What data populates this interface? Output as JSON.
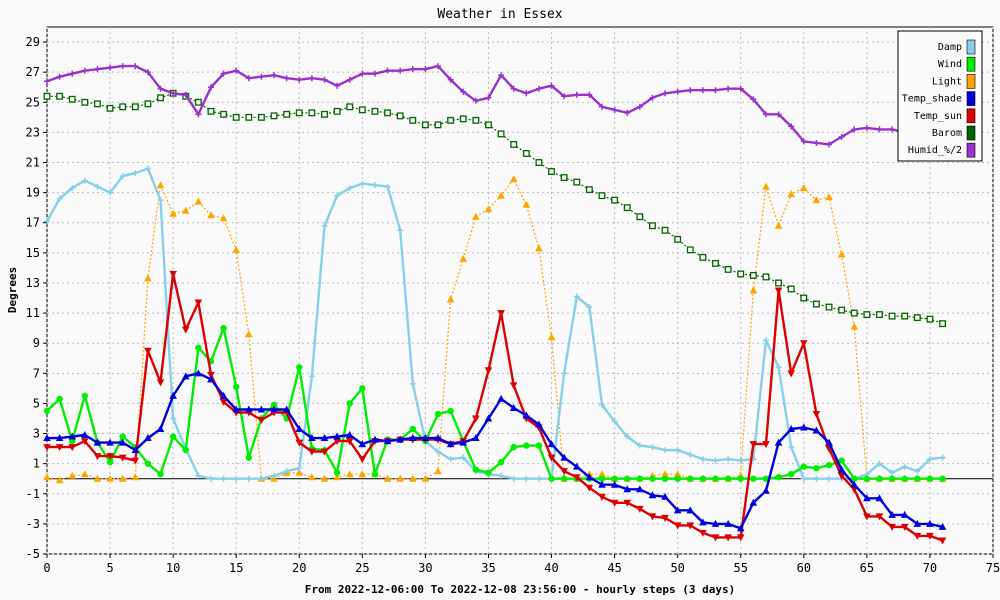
{
  "chart_data": {
    "type": "line",
    "title": "Weather in Essex",
    "xlabel": "From 2022-12-06:00 To 2022-12-08 23:56:00 - hourly steps (3 days)",
    "ylabel": "Degrees",
    "xlim": [
      0,
      75
    ],
    "ylim": [
      -5,
      30
    ],
    "xticks": [
      0,
      5,
      10,
      15,
      20,
      25,
      30,
      35,
      40,
      45,
      50,
      55,
      60,
      65,
      70,
      75
    ],
    "yticks": [
      -5,
      -3,
      -1,
      1,
      3,
      5,
      7,
      9,
      11,
      13,
      15,
      17,
      19,
      21,
      23,
      25,
      27,
      29
    ],
    "grid": true,
    "legend_position": "top-right",
    "x": [
      0,
      1,
      2,
      3,
      4,
      5,
      6,
      7,
      8,
      9,
      10,
      11,
      12,
      13,
      14,
      15,
      16,
      17,
      18,
      19,
      20,
      21,
      22,
      23,
      24,
      25,
      26,
      27,
      28,
      29,
      30,
      31,
      32,
      33,
      34,
      35,
      36,
      37,
      38,
      39,
      40,
      41,
      42,
      43,
      44,
      45,
      46,
      47,
      48,
      49,
      50,
      51,
      52,
      53,
      54,
      55,
      56,
      57,
      58,
      59,
      60,
      61,
      62,
      63,
      64,
      65,
      66,
      67,
      68,
      69,
      70,
      71
    ],
    "series": [
      {
        "name": "Damp",
        "color": "#87ceeb",
        "values": [
          17.1,
          18.6,
          19.3,
          19.8,
          19.4,
          19.0,
          20.1,
          20.3,
          20.6,
          18.5,
          4.0,
          2.0,
          0.2,
          0.0,
          0.0,
          0.0,
          0.0,
          0.0,
          0.2,
          0.5,
          0.7,
          6.8,
          16.8,
          18.8,
          19.3,
          19.6,
          19.5,
          19.4,
          16.5,
          6.3,
          2.5,
          1.8,
          1.3,
          1.4,
          0.5,
          0.3,
          0.2,
          0.0,
          0.0,
          0.0,
          0.0,
          7.0,
          12.1,
          11.4,
          4.9,
          3.8,
          2.8,
          2.2,
          2.1,
          1.9,
          1.9,
          1.6,
          1.3,
          1.2,
          1.3,
          1.2,
          1.3,
          9.2,
          7.4,
          2.1,
          0.0,
          0.0,
          0.0,
          0.0,
          0.0,
          0.3,
          1.0,
          0.4,
          0.8,
          0.5,
          1.3,
          1.4
        ]
      },
      {
        "name": "Wind",
        "color": "#00ee00",
        "values": [
          4.5,
          5.3,
          2.5,
          5.5,
          2.4,
          1.1,
          2.8,
          2.1,
          1.0,
          0.3,
          2.8,
          1.9,
          8.7,
          7.8,
          10.0,
          6.1,
          1.4,
          4.0,
          4.9,
          4.0,
          7.4,
          2.0,
          1.9,
          0.4,
          5.0,
          6.0,
          0.3,
          2.6,
          2.6,
          3.3,
          2.5,
          4.3,
          4.5,
          2.5,
          0.6,
          0.4,
          1.1,
          2.1,
          2.2,
          2.2,
          0.0,
          0.0,
          0.0,
          0.0,
          0.0,
          0.0,
          0.0,
          0.0,
          0.0,
          0.0,
          0.0,
          0.0,
          0.0,
          0.0,
          0.0,
          0.0,
          0.0,
          0.0,
          0.1,
          0.3,
          0.8,
          0.7,
          0.9,
          1.2,
          0.0,
          0.0,
          0.0,
          0.0,
          0.0,
          0.0,
          0.0,
          0.0
        ]
      },
      {
        "name": "Light",
        "color": "#ffa500",
        "values": [
          0.1,
          -0.1,
          0.2,
          0.3,
          0.0,
          0.0,
          0.0,
          0.1,
          13.3,
          19.5,
          17.6,
          17.8,
          18.4,
          17.5,
          17.3,
          15.2,
          9.6,
          0.0,
          0.0,
          0.4,
          0.4,
          0.1,
          0.0,
          0.1,
          0.3,
          0.3,
          0.3,
          0.0,
          0.0,
          0.0,
          0.0,
          0.5,
          11.9,
          14.6,
          17.4,
          17.9,
          18.8,
          19.9,
          18.2,
          15.3,
          9.4,
          0.0,
          0.0,
          0.3,
          0.3,
          0.0,
          0.0,
          0.0,
          0.2,
          0.3,
          0.3,
          0.0,
          0.0,
          0.0,
          0.0,
          0.2,
          12.5,
          19.4,
          16.8,
          18.9,
          19.3,
          18.5,
          18.7,
          14.9,
          10.1,
          0.0,
          0.0,
          0.0,
          0.0,
          0.0,
          0.0,
          0.0
        ]
      },
      {
        "name": "Temp_shade",
        "color": "#0000dd",
        "values": [
          2.7,
          2.7,
          2.8,
          2.9,
          2.4,
          2.4,
          2.4,
          1.9,
          2.7,
          3.3,
          5.5,
          6.8,
          7.0,
          6.6,
          5.5,
          4.6,
          4.6,
          4.6,
          4.6,
          4.6,
          3.3,
          2.7,
          2.7,
          2.8,
          2.9,
          2.3,
          2.6,
          2.5,
          2.6,
          2.7,
          2.7,
          2.7,
          2.3,
          2.4,
          2.7,
          4.0,
          5.3,
          4.7,
          4.2,
          3.6,
          2.3,
          1.4,
          0.8,
          0.1,
          -0.4,
          -0.4,
          -0.7,
          -0.7,
          -1.1,
          -1.2,
          -2.1,
          -2.1,
          -2.9,
          -3.0,
          -3.0,
          -3.3,
          -1.6,
          -0.8,
          2.4,
          3.3,
          3.4,
          3.2,
          2.4,
          0.6,
          -0.4,
          -1.3,
          -1.3,
          -2.4,
          -2.4,
          -3.0,
          -3.0,
          -3.2
        ]
      },
      {
        "name": "Temp_sun",
        "color": "#dd0000",
        "values": [
          2.1,
          2.1,
          2.1,
          2.5,
          1.5,
          1.5,
          1.4,
          1.2,
          8.5,
          6.4,
          13.6,
          9.9,
          11.7,
          6.9,
          5.1,
          4.4,
          4.4,
          3.9,
          4.4,
          4.4,
          2.4,
          1.8,
          1.8,
          2.5,
          2.5,
          1.3,
          2.5,
          2.5,
          2.6,
          2.6,
          2.6,
          2.6,
          2.3,
          2.5,
          4.0,
          7.2,
          11.0,
          6.2,
          4.0,
          3.4,
          1.4,
          0.5,
          0.1,
          -0.6,
          -1.2,
          -1.6,
          -1.6,
          -2.0,
          -2.5,
          -2.6,
          -3.1,
          -3.1,
          -3.6,
          -3.9,
          -3.9,
          -3.9,
          2.3,
          2.3,
          12.5,
          7.0,
          9.0,
          4.3,
          2.0,
          0.2,
          -0.7,
          -2.5,
          -2.5,
          -3.2,
          -3.2,
          -3.8,
          -3.8,
          -4.1
        ]
      },
      {
        "name": "Barom",
        "color": "#006400",
        "values": [
          25.4,
          25.4,
          25.2,
          25.0,
          24.9,
          24.6,
          24.7,
          24.7,
          24.9,
          25.3,
          25.6,
          25.4,
          25.0,
          24.4,
          24.2,
          24.0,
          24.0,
          24.0,
          24.1,
          24.2,
          24.3,
          24.3,
          24.2,
          24.4,
          24.7,
          24.5,
          24.4,
          24.3,
          24.1,
          23.8,
          23.5,
          23.5,
          23.8,
          23.9,
          23.8,
          23.5,
          22.9,
          22.2,
          21.6,
          21.0,
          20.4,
          20.0,
          19.7,
          19.2,
          18.8,
          18.5,
          18.0,
          17.4,
          16.8,
          16.5,
          15.9,
          15.2,
          14.7,
          14.3,
          13.9,
          13.6,
          13.5,
          13.4,
          13.0,
          12.6,
          12.0,
          11.6,
          11.4,
          11.2,
          11.0,
          10.9,
          10.9,
          10.8,
          10.8,
          10.7,
          10.6,
          10.3
        ]
      },
      {
        "name": "Humid_%/2",
        "color": "#9932cc",
        "values": [
          26.4,
          26.7,
          26.9,
          27.1,
          27.2,
          27.3,
          27.4,
          27.4,
          27.0,
          25.9,
          25.6,
          25.5,
          24.2,
          26.0,
          26.9,
          27.1,
          26.6,
          26.7,
          26.8,
          26.6,
          26.5,
          26.6,
          26.5,
          26.1,
          26.5,
          26.9,
          26.9,
          27.1,
          27.1,
          27.2,
          27.2,
          27.4,
          26.5,
          25.7,
          25.1,
          25.3,
          26.8,
          25.9,
          25.6,
          25.9,
          26.1,
          25.4,
          25.5,
          25.5,
          24.7,
          24.5,
          24.3,
          24.7,
          25.3,
          25.6,
          25.7,
          25.8,
          25.8,
          25.8,
          25.9,
          25.9,
          25.2,
          24.2,
          24.2,
          23.4,
          22.4,
          22.3,
          22.2,
          22.7,
          23.2,
          23.3,
          23.2,
          23.2,
          23.0,
          23.5,
          null,
          null
        ]
      }
    ]
  }
}
